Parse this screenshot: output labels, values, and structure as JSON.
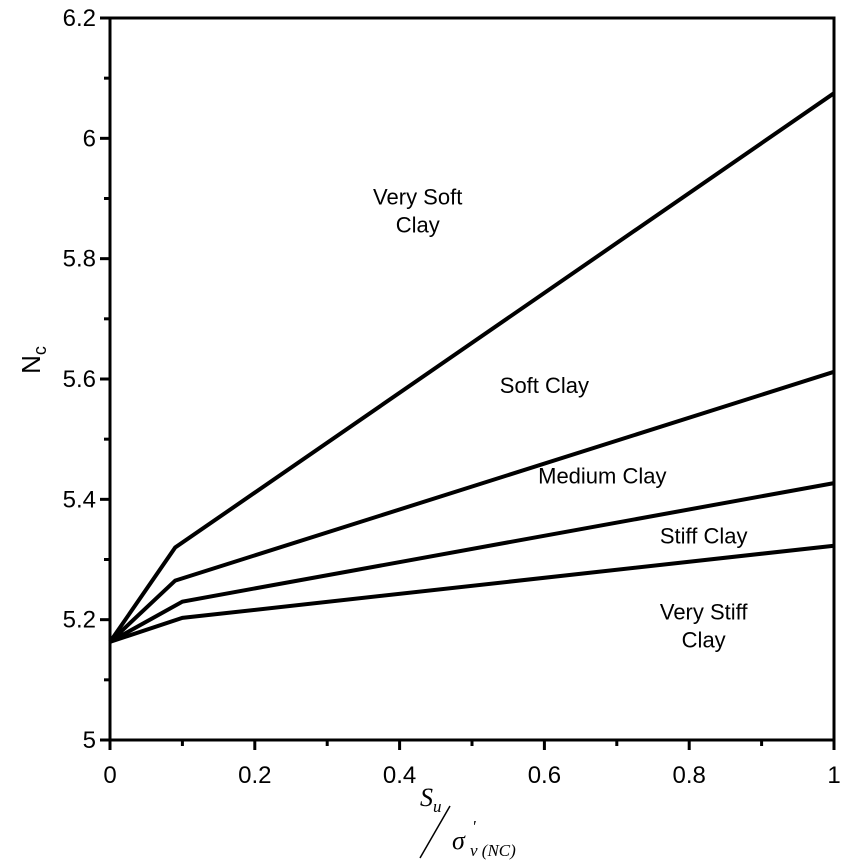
{
  "chart_data": {
    "type": "line",
    "xlim": [
      0,
      1
    ],
    "ylim": [
      5,
      6.2
    ],
    "x_ticks": [
      "0",
      "0.2",
      "0.4",
      "0.6",
      "0.8",
      "1"
    ],
    "y_ticks": [
      "5",
      "5.2",
      "5.4",
      "5.6",
      "5.8",
      "6",
      "6.2"
    ],
    "ylabel": {
      "main": "N",
      "sub": "c"
    },
    "xlabel": {
      "numerator": "S",
      "numerator_sub": "u",
      "denominator": "σ",
      "denominator_sup": "'",
      "denominator_sub": "v (NC)"
    },
    "grid": false,
    "series": [
      {
        "x": [
          0,
          0.09,
          1
        ],
        "y": [
          5.163,
          5.32,
          6.075
        ]
      },
      {
        "x": [
          0,
          0.09,
          1
        ],
        "y": [
          5.163,
          5.265,
          5.612
        ]
      },
      {
        "x": [
          0,
          0.1,
          1
        ],
        "y": [
          5.163,
          5.23,
          5.427
        ]
      },
      {
        "x": [
          0,
          0.1,
          1
        ],
        "y": [
          5.163,
          5.203,
          5.323
        ]
      }
    ],
    "annotations": [
      {
        "lines": [
          "Very Soft",
          "Clay"
        ],
        "x": 0.425,
        "y": 5.88
      },
      {
        "lines": [
          "Soft Clay"
        ],
        "x": 0.6,
        "y": 5.59
      },
      {
        "lines": [
          "Medium Clay"
        ],
        "x": 0.68,
        "y": 5.44
      },
      {
        "lines": [
          "Stiff Clay"
        ],
        "x": 0.82,
        "y": 5.34
      },
      {
        "lines": [
          "Very Stiff",
          "Clay"
        ],
        "x": 0.82,
        "y": 5.19
      }
    ]
  }
}
